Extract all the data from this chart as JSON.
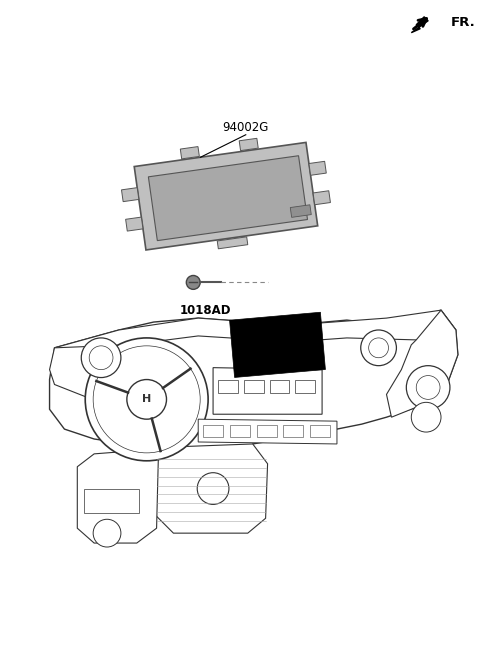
{
  "background_color": "#ffffff",
  "text_color": "#000000",
  "line_color": "#333333",
  "gray_fill": "#c0c0c0",
  "gray_edge": "#555555",
  "fig_w": 4.8,
  "fig_h": 6.57,
  "dpi": 100,
  "fr_text": "FR.",
  "part1_text": "94002G",
  "part2_text": "1018AD",
  "label_fontsize": 8.5,
  "fr_fontsize": 9.5
}
